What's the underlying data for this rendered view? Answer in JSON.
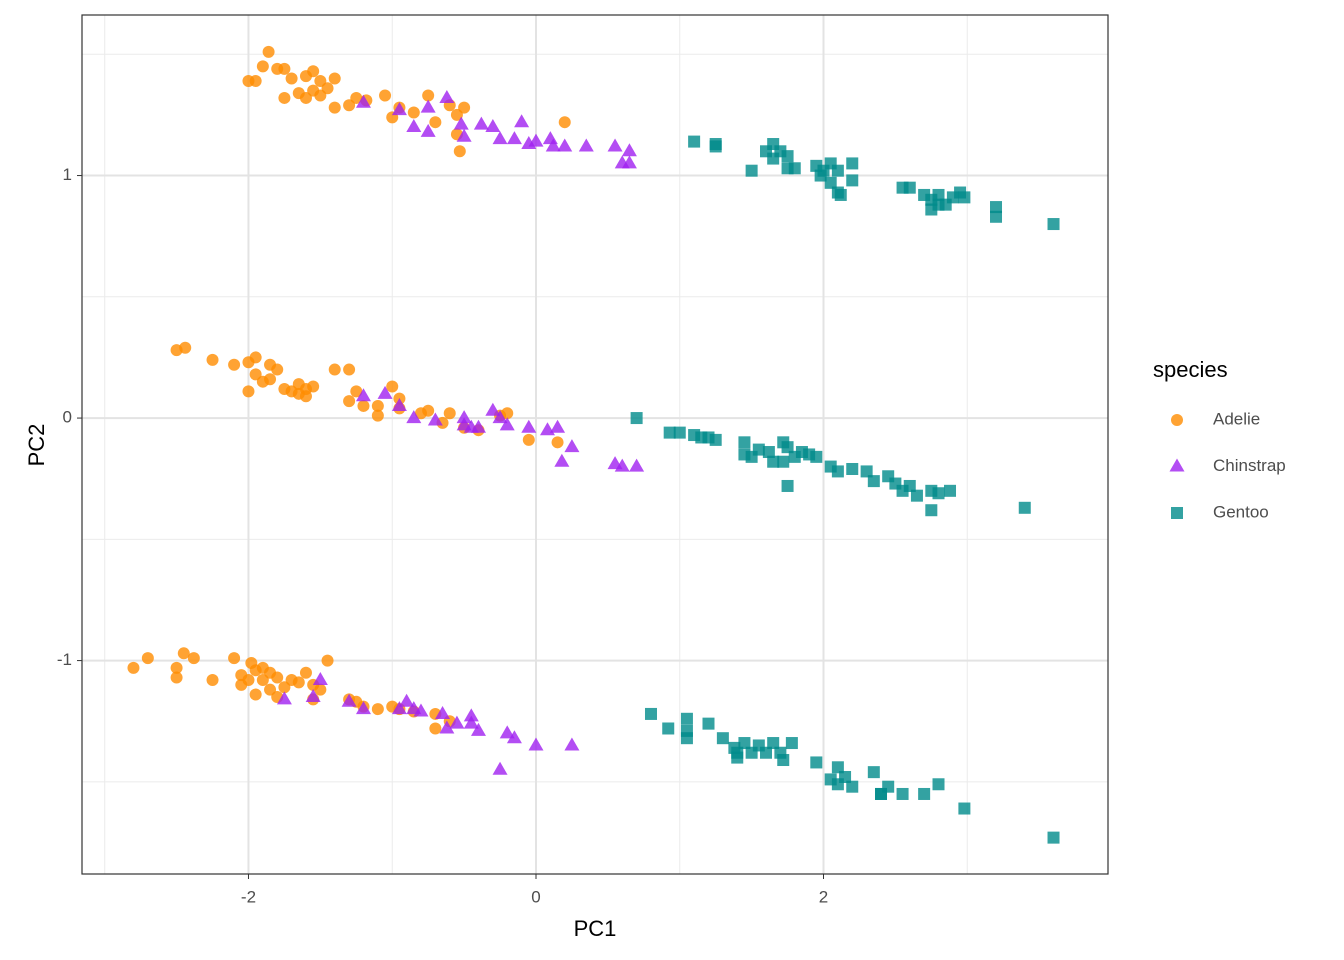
{
  "chart_data": {
    "type": "scatter",
    "x_label": "PC1",
    "y_label": "PC2",
    "xlim": [
      -3.158,
      3.979
    ],
    "ylim": [
      -1.88,
      1.662
    ],
    "xticks": [
      -2,
      0,
      2
    ],
    "yticks": [
      -1,
      0,
      1
    ],
    "xminor": [
      -3,
      -1,
      1,
      3
    ],
    "yminor": [
      -1.5,
      -0.5,
      0.5,
      1.5
    ],
    "grid": true,
    "legend_position": "right",
    "legend_title": "species",
    "alpha": 0.8,
    "series": [
      {
        "name": "Adelie",
        "color": "#ff8c00",
        "shape": "circle",
        "x": [
          -1.86,
          -1.9,
          -1.95,
          -2.0,
          -1.8,
          -1.75,
          -1.7,
          -1.65,
          -1.75,
          -1.6,
          -1.55,
          -1.5,
          -1.45,
          -1.4,
          -1.55,
          -1.5,
          -1.4,
          -1.3,
          -1.25,
          -1.18,
          -1.05,
          -0.95,
          -0.85,
          -0.75,
          -0.7,
          -0.6,
          -0.55,
          -0.5,
          -0.55,
          -0.53,
          0.2,
          -1.0,
          -1.6,
          -2.5,
          -2.44,
          -2.25,
          -2.1,
          -2.0,
          -1.95,
          -1.85,
          -1.8,
          -1.95,
          -1.9,
          -1.85,
          -1.75,
          -1.7,
          -1.65,
          -1.6,
          -1.55,
          -1.65,
          -1.6,
          -2.0,
          -1.4,
          -1.3,
          -1.25,
          -1.3,
          -1.2,
          -1.1,
          -1.1,
          -1.0,
          -0.95,
          -0.95,
          -0.8,
          -0.75,
          -0.6,
          -0.65,
          -0.5,
          -0.4,
          -0.2,
          -0.25,
          -0.05,
          0.15,
          -2.8,
          -2.7,
          -2.5,
          -2.5,
          -2.45,
          -2.38,
          -2.25,
          -2.1,
          -2.05,
          -1.98,
          -1.95,
          -1.9,
          -2.0,
          -2.05,
          -1.9,
          -1.85,
          -1.8,
          -1.85,
          -1.75,
          -1.7,
          -1.65,
          -1.6,
          -1.55,
          -1.5,
          -1.45,
          -1.55,
          -1.3,
          -1.25,
          -1.2,
          -1.1,
          -1.0,
          -0.95,
          -0.85,
          -0.7,
          -0.6,
          -0.7,
          -1.8,
          -1.95
        ],
        "y": [
          1.51,
          1.45,
          1.39,
          1.39,
          1.44,
          1.44,
          1.4,
          1.34,
          1.32,
          1.41,
          1.43,
          1.39,
          1.36,
          1.4,
          1.35,
          1.33,
          1.28,
          1.29,
          1.32,
          1.31,
          1.33,
          1.28,
          1.26,
          1.33,
          1.22,
          1.29,
          1.25,
          1.28,
          1.17,
          1.1,
          1.22,
          1.24,
          1.32,
          0.28,
          0.29,
          0.24,
          0.22,
          0.23,
          0.25,
          0.22,
          0.2,
          0.18,
          0.15,
          0.16,
          0.12,
          0.11,
          0.14,
          0.12,
          0.13,
          0.1,
          0.09,
          0.11,
          0.2,
          0.2,
          0.11,
          0.07,
          0.05,
          0.05,
          0.01,
          0.13,
          0.08,
          0.04,
          0.02,
          0.03,
          0.02,
          -0.02,
          -0.04,
          -0.05,
          0.02,
          0.01,
          -0.09,
          -0.1,
          -1.03,
          -0.99,
          -1.03,
          -1.07,
          -0.97,
          -0.99,
          -1.08,
          -0.99,
          -1.06,
          -1.01,
          -1.04,
          -1.03,
          -1.08,
          -1.1,
          -1.08,
          -1.05,
          -1.07,
          -1.12,
          -1.11,
          -1.08,
          -1.09,
          -1.05,
          -1.1,
          -1.12,
          -1.0,
          -1.16,
          -1.16,
          -1.17,
          -1.19,
          -1.2,
          -1.19,
          -1.2,
          -1.21,
          -1.22,
          -1.25,
          -1.28,
          -1.15,
          -1.14
        ]
      },
      {
        "name": "Chinstrap",
        "color": "#a020f0",
        "shape": "triangle",
        "x": [
          -1.2,
          -0.95,
          -0.75,
          -0.62,
          -0.85,
          -0.52,
          -0.5,
          -0.38,
          -0.3,
          -0.25,
          -0.1,
          -0.15,
          0.0,
          0.1,
          0.12,
          0.2,
          0.35,
          0.55,
          0.6,
          0.65,
          0.65,
          -0.75,
          -0.05,
          -1.2,
          -1.05,
          -0.95,
          -0.85,
          -0.7,
          -0.5,
          -0.4,
          -0.3,
          -0.25,
          -0.05,
          -0.45,
          0.08,
          0.15,
          0.25,
          0.18,
          0.55,
          0.6,
          0.7,
          -0.5,
          -0.2,
          -1.5,
          -1.75,
          -1.55,
          -1.3,
          -1.2,
          -0.95,
          -0.9,
          -0.85,
          -0.8,
          -0.65,
          -0.55,
          -0.45,
          -0.4,
          -0.2,
          -0.15,
          0.0,
          -0.25,
          0.25,
          -0.62,
          -0.45
        ],
        "y": [
          1.3,
          1.27,
          1.28,
          1.32,
          1.2,
          1.21,
          1.16,
          1.21,
          1.2,
          1.15,
          1.22,
          1.15,
          1.14,
          1.15,
          1.12,
          1.12,
          1.12,
          1.12,
          1.05,
          1.05,
          1.1,
          1.18,
          1.13,
          0.09,
          0.1,
          0.05,
          0.0,
          -0.01,
          0.0,
          -0.04,
          0.03,
          0.0,
          -0.04,
          -0.04,
          -0.05,
          -0.04,
          -0.12,
          -0.18,
          -0.19,
          -0.2,
          -0.2,
          -0.03,
          -0.03,
          -1.08,
          -1.16,
          -1.15,
          -1.17,
          -1.2,
          -1.2,
          -1.17,
          -1.2,
          -1.21,
          -1.22,
          -1.26,
          -1.26,
          -1.29,
          -1.3,
          -1.32,
          -1.35,
          -1.45,
          -1.35,
          -1.28,
          -1.23
        ]
      },
      {
        "name": "Gentoo",
        "color": "#008b8b",
        "shape": "square",
        "x": [
          1.1,
          1.25,
          1.25,
          1.5,
          1.6,
          1.65,
          1.7,
          1.65,
          1.75,
          1.8,
          1.75,
          1.95,
          2.0,
          1.98,
          2.05,
          2.1,
          2.2,
          2.05,
          2.2,
          2.1,
          2.12,
          2.55,
          2.6,
          2.7,
          2.75,
          2.8,
          2.85,
          2.75,
          2.9,
          2.95,
          2.98,
          3.2,
          3.2,
          3.6,
          2.8,
          0.7,
          0.93,
          1.0,
          1.1,
          1.15,
          1.2,
          1.25,
          1.45,
          1.45,
          1.5,
          1.55,
          1.62,
          1.65,
          1.72,
          1.75,
          1.72,
          1.75,
          1.8,
          1.85,
          1.9,
          1.95,
          2.05,
          2.1,
          2.2,
          2.3,
          2.35,
          2.45,
          2.5,
          2.55,
          2.65,
          2.75,
          2.8,
          2.88,
          2.75,
          3.4,
          2.6,
          0.8,
          0.92,
          1.05,
          1.05,
          1.05,
          1.2,
          1.3,
          1.38,
          1.4,
          1.45,
          1.5,
          1.55,
          1.6,
          1.65,
          1.7,
          1.72,
          1.78,
          1.95,
          2.05,
          2.1,
          2.15,
          2.1,
          2.2,
          2.35,
          2.4,
          2.45,
          2.55,
          2.7,
          2.8,
          2.98,
          3.6,
          1.4,
          2.4
        ],
        "y": [
          1.14,
          1.13,
          1.12,
          1.02,
          1.1,
          1.13,
          1.1,
          1.07,
          1.08,
          1.03,
          1.03,
          1.04,
          1.02,
          1.0,
          1.05,
          1.02,
          1.05,
          0.97,
          0.98,
          0.93,
          0.92,
          0.95,
          0.95,
          0.92,
          0.9,
          0.88,
          0.88,
          0.86,
          0.91,
          0.93,
          0.91,
          0.87,
          0.83,
          0.8,
          0.92,
          0.0,
          -0.06,
          -0.06,
          -0.07,
          -0.08,
          -0.08,
          -0.09,
          -0.1,
          -0.15,
          -0.16,
          -0.13,
          -0.14,
          -0.18,
          -0.1,
          -0.12,
          -0.18,
          -0.28,
          -0.16,
          -0.14,
          -0.15,
          -0.16,
          -0.2,
          -0.22,
          -0.21,
          -0.22,
          -0.26,
          -0.24,
          -0.27,
          -0.3,
          -0.32,
          -0.3,
          -0.31,
          -0.3,
          -0.38,
          -0.37,
          -0.28,
          -1.22,
          -1.28,
          -1.24,
          -1.29,
          -1.32,
          -1.26,
          -1.32,
          -1.36,
          -1.4,
          -1.34,
          -1.38,
          -1.35,
          -1.38,
          -1.34,
          -1.38,
          -1.41,
          -1.34,
          -1.42,
          -1.49,
          -1.44,
          -1.48,
          -1.51,
          -1.52,
          -1.46,
          -1.55,
          -1.52,
          -1.55,
          -1.55,
          -1.51,
          -1.61,
          -1.73,
          -1.38,
          -1.55
        ]
      }
    ]
  }
}
